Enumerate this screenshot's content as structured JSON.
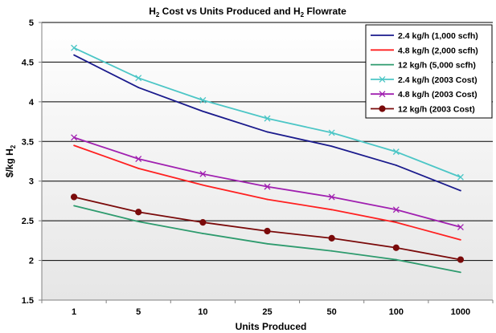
{
  "chart_data": {
    "type": "line",
    "title_parts": [
      "H",
      "2",
      " Cost vs Units Produced and H",
      "2",
      " Flowrate"
    ],
    "xlabel": "Units Produced",
    "ylabel_parts": [
      "$/kg H",
      "2"
    ],
    "categories": [
      "1",
      "5",
      "10",
      "25",
      "50",
      "100",
      "1000"
    ],
    "ylim": [
      1.5,
      5
    ],
    "yticks": [
      "1.5",
      "2",
      "2.5",
      "3",
      "3.5",
      "4",
      "4.5",
      "5"
    ],
    "grid": true,
    "legend_position": "top-right",
    "series": [
      {
        "name": "2.4 kg/h (1,000 scfh)",
        "color": "#1a1a8c",
        "marker": "none",
        "values": [
          4.59,
          4.18,
          3.88,
          3.62,
          3.44,
          3.2,
          2.88
        ]
      },
      {
        "name": "4.8 kg/h (2,000 scfh)",
        "color": "#ff2020",
        "marker": "none",
        "values": [
          3.45,
          3.16,
          2.95,
          2.77,
          2.64,
          2.48,
          2.26
        ]
      },
      {
        "name": "12 kg/h (5,000 scfh)",
        "color": "#2e9b6e",
        "marker": "none",
        "values": [
          2.69,
          2.49,
          2.34,
          2.21,
          2.12,
          2.01,
          1.85
        ]
      },
      {
        "name": "2.4 kg/h (2003 Cost)",
        "color": "#4cc6c6",
        "marker": "x",
        "values": [
          4.68,
          4.3,
          4.02,
          3.79,
          3.61,
          3.37,
          3.05
        ]
      },
      {
        "name": "4.8 kg/h (2003 Cost)",
        "color": "#a020b0",
        "marker": "x",
        "values": [
          3.55,
          3.28,
          3.09,
          2.93,
          2.8,
          2.64,
          2.42
        ]
      },
      {
        "name": "12 kg/h (2003 Cost)",
        "color": "#7a0a0a",
        "marker": "circle",
        "values": [
          2.8,
          2.61,
          2.48,
          2.37,
          2.28,
          2.16,
          2.01
        ]
      }
    ],
    "colors": {
      "plot_bg_top": "#ffffff",
      "plot_bg_bottom": "#e6e6e6",
      "grid": "#000000",
      "axis": "#808080",
      "legend_border": "#000000"
    }
  }
}
